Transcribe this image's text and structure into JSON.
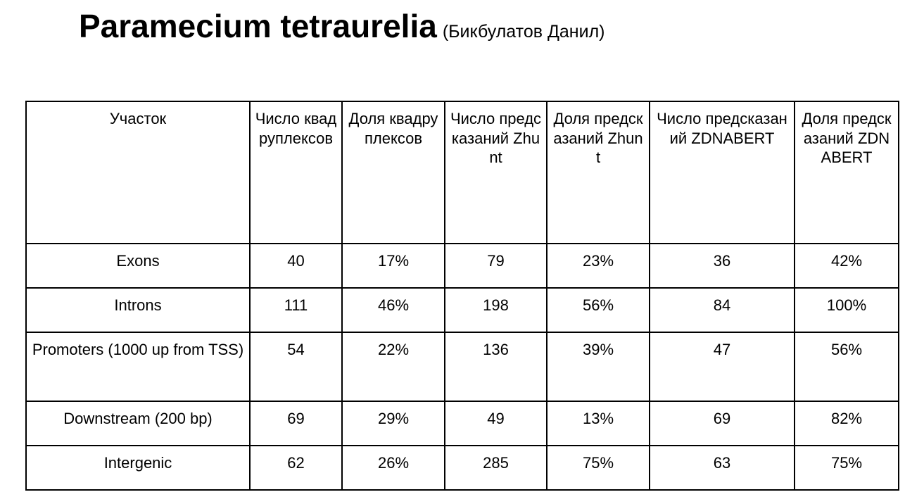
{
  "title": {
    "main": "Paramecium tetraurelia",
    "sub": "(Бикбулатов Данил)"
  },
  "table": {
    "headers": [
      "Участок",
      "Число квадруплексов",
      "Доля квадруплексов",
      "Число предсказаний Zhunt",
      "Доля предсказаний Zhunt",
      "Число предсказаний ZDNABERT",
      "Доля предсказаний ZDNABERT"
    ],
    "rows": [
      [
        "Exons",
        "40",
        "17%",
        "79",
        "23%",
        "36",
        "42%"
      ],
      [
        "Introns",
        "111",
        "46%",
        "198",
        "56%",
        "84",
        "100%"
      ],
      [
        "Promoters (1000 up from TSS)",
        "54",
        "22%",
        "136",
        "39%",
        "47",
        "56%"
      ],
      [
        "Downstream (200 bp)",
        "69",
        "29%",
        "49",
        "13%",
        "69",
        "82%"
      ],
      [
        "Intergenic",
        "62",
        "26%",
        "285",
        "75%",
        "63",
        "75%"
      ]
    ]
  }
}
